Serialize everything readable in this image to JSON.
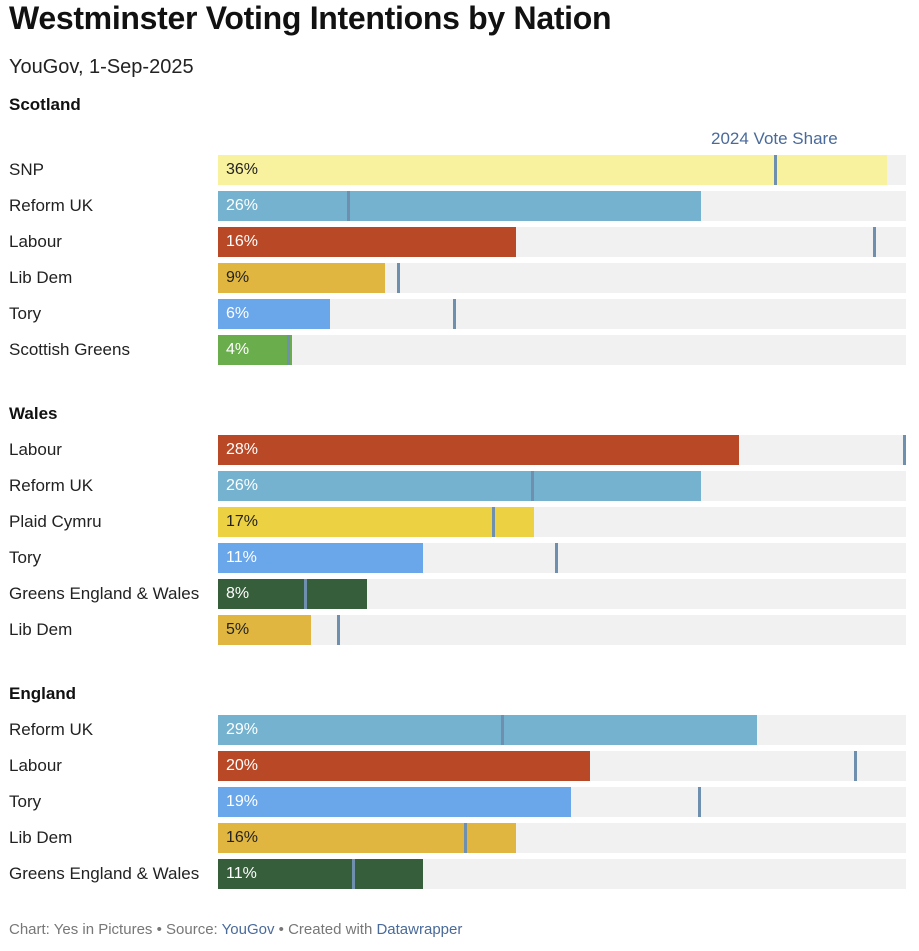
{
  "title": "Westminster Voting Intentions by Nation",
  "subtitle": "YouGov, 1-Sep-2025",
  "legend_label": "2024 Vote Share",
  "footer": {
    "chart_label": "Chart: Yes in Pictures",
    "sep": "•",
    "source_label": "Source:",
    "source_link": "YouGov",
    "created_label": "Created with",
    "created_link": "Datawrapper"
  },
  "chart_data": {
    "type": "bar",
    "orientation": "horizontal",
    "title": "Westminster Voting Intentions by Nation",
    "subtitle": "YouGov, 1-Sep-2025",
    "xlim": [
      0,
      37
    ],
    "value_suffix": "%",
    "marker_series_name": "2024 Vote Share",
    "sections": [
      {
        "name": "Scotland",
        "rows": [
          {
            "party": "SNP",
            "value": 36,
            "value_label": "36%",
            "prev": 30,
            "color": "#f8f19d",
            "text_color": "#222222"
          },
          {
            "party": "Reform UK",
            "value": 26,
            "value_label": "26%",
            "prev": 7,
            "color": "#74b2cf",
            "text_color": "#ffffff"
          },
          {
            "party": "Labour",
            "value": 16,
            "value_label": "16%",
            "prev": 35.3,
            "color": "#b94826",
            "text_color": "#ffffff"
          },
          {
            "party": "Lib Dem",
            "value": 9,
            "value_label": "9%",
            "prev": 9.7,
            "color": "#e0b640",
            "text_color": "#222222"
          },
          {
            "party": "Tory",
            "value": 6,
            "value_label": "6%",
            "prev": 12.7,
            "color": "#6aa6ea",
            "text_color": "#ffffff"
          },
          {
            "party": "Scottish Greens",
            "value": 4,
            "value_label": "4%",
            "prev": 3.8,
            "color": "#6aad4c",
            "text_color": "#ffffff"
          }
        ]
      },
      {
        "name": "Wales",
        "rows": [
          {
            "party": "Labour",
            "value": 28,
            "value_label": "28%",
            "prev": 37,
            "color": "#b94826",
            "text_color": "#ffffff"
          },
          {
            "party": "Reform UK",
            "value": 26,
            "value_label": "26%",
            "prev": 16.9,
            "color": "#74b2cf",
            "text_color": "#ffffff"
          },
          {
            "party": "Plaid Cymru",
            "value": 17,
            "value_label": "17%",
            "prev": 14.8,
            "color": "#ecd143",
            "text_color": "#222222"
          },
          {
            "party": "Tory",
            "value": 11,
            "value_label": "11%",
            "prev": 18.2,
            "color": "#6aa6ea",
            "text_color": "#ffffff"
          },
          {
            "party": "Greens England & Wales",
            "value": 8,
            "value_label": "8%",
            "prev": 4.7,
            "color": "#375e3b",
            "text_color": "#ffffff"
          },
          {
            "party": "Lib Dem",
            "value": 5,
            "value_label": "5%",
            "prev": 6.5,
            "color": "#e0b640",
            "text_color": "#222222"
          }
        ]
      },
      {
        "name": "England",
        "rows": [
          {
            "party": "Reform UK",
            "value": 29,
            "value_label": "29%",
            "prev": 15.3,
            "color": "#74b2cf",
            "text_color": "#ffffff"
          },
          {
            "party": "Labour",
            "value": 20,
            "value_label": "20%",
            "prev": 34.3,
            "color": "#b94826",
            "text_color": "#ffffff"
          },
          {
            "party": "Tory",
            "value": 19,
            "value_label": "19%",
            "prev": 25.9,
            "color": "#6aa6ea",
            "text_color": "#ffffff"
          },
          {
            "party": "Lib Dem",
            "value": 16,
            "value_label": "16%",
            "prev": 13.3,
            "color": "#e0b640",
            "text_color": "#222222"
          },
          {
            "party": "Greens England & Wales",
            "value": 11,
            "value_label": "11%",
            "prev": 7.3,
            "color": "#375e3b",
            "text_color": "#ffffff"
          }
        ]
      }
    ]
  }
}
